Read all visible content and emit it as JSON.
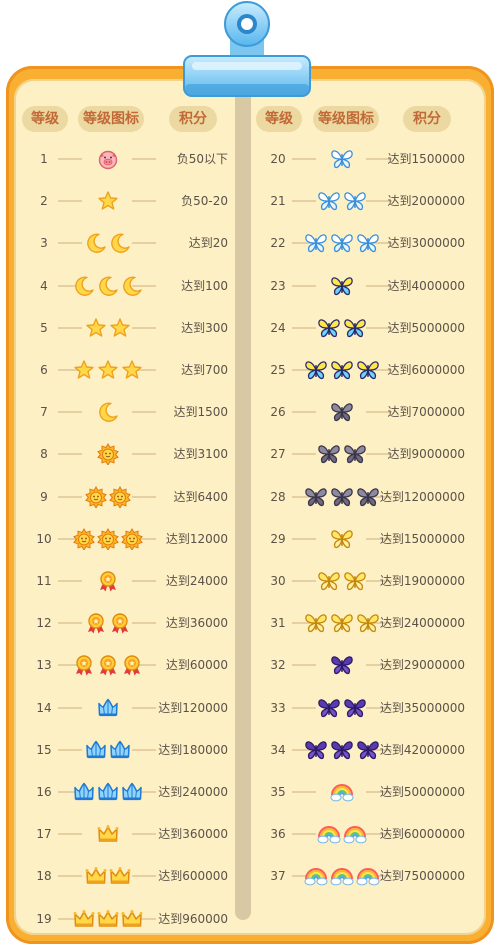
{
  "headers": {
    "level": "等级",
    "icon": "等级图标",
    "points": "积分"
  },
  "colors": {
    "board": "#f9b032",
    "panel": "#fdf0c4",
    "header_bg": "#ecd9a2",
    "header_text": "#c16a38"
  },
  "levels": [
    {
      "level": "1",
      "points": "负50以下",
      "icon": "pig-icon",
      "count": 1
    },
    {
      "level": "2",
      "points": "负50-20",
      "icon": "star-icon",
      "count": 1
    },
    {
      "level": "3",
      "points": "达到20",
      "icon": "moon-icon",
      "count": 2
    },
    {
      "level": "4",
      "points": "达到100",
      "icon": "moon-icon",
      "count": 3
    },
    {
      "level": "5",
      "points": "达到300",
      "icon": "star-icon",
      "count": 2
    },
    {
      "level": "6",
      "points": "达到700",
      "icon": "star-icon",
      "count": 3
    },
    {
      "level": "7",
      "points": "达到1500",
      "icon": "moon-icon",
      "count": 1
    },
    {
      "level": "8",
      "points": "达到3100",
      "icon": "sun-icon",
      "count": 1
    },
    {
      "level": "9",
      "points": "达到6400",
      "icon": "sun-icon",
      "count": 2
    },
    {
      "level": "10",
      "points": "达到12000",
      "icon": "sun-icon",
      "count": 3
    },
    {
      "level": "11",
      "points": "达到24000",
      "icon": "medal-icon",
      "count": 1
    },
    {
      "level": "12",
      "points": "达到36000",
      "icon": "medal-icon",
      "count": 2
    },
    {
      "level": "13",
      "points": "达到60000",
      "icon": "medal-icon",
      "count": 3
    },
    {
      "level": "14",
      "points": "达到120000",
      "icon": "blue-crown-icon",
      "count": 1
    },
    {
      "level": "15",
      "points": "达到180000",
      "icon": "blue-crown-icon",
      "count": 2
    },
    {
      "level": "16",
      "points": "达到240000",
      "icon": "blue-crown-icon",
      "count": 3
    },
    {
      "level": "17",
      "points": "达到360000",
      "icon": "gold-crown-icon",
      "count": 1
    },
    {
      "level": "18",
      "points": "达到600000",
      "icon": "gold-crown-icon",
      "count": 2
    },
    {
      "level": "19",
      "points": "达到960000",
      "icon": "gold-crown-icon",
      "count": 3
    },
    {
      "level": "20",
      "points": "达到1500000",
      "icon": "white-butterfly-icon",
      "count": 1
    },
    {
      "level": "21",
      "points": "达到2000000",
      "icon": "white-butterfly-icon",
      "count": 2
    },
    {
      "level": "22",
      "points": "达到3000000",
      "icon": "white-butterfly-icon",
      "count": 3
    },
    {
      "level": "23",
      "points": "达到4000000",
      "icon": "rainbow-butterfly-icon",
      "count": 1
    },
    {
      "level": "24",
      "points": "达到5000000",
      "icon": "rainbow-butterfly-icon",
      "count": 2
    },
    {
      "level": "25",
      "points": "达到6000000",
      "icon": "rainbow-butterfly-icon",
      "count": 3
    },
    {
      "level": "26",
      "points": "达到7000000",
      "icon": "gray-butterfly-icon",
      "count": 1
    },
    {
      "level": "27",
      "points": "达到9000000",
      "icon": "gray-butterfly-icon",
      "count": 2
    },
    {
      "level": "28",
      "points": "达到12000000",
      "icon": "gray-butterfly-icon",
      "count": 3
    },
    {
      "level": "29",
      "points": "达到15000000",
      "icon": "yellow-butterfly-icon",
      "count": 1
    },
    {
      "level": "30",
      "points": "达到19000000",
      "icon": "yellow-butterfly-icon",
      "count": 2
    },
    {
      "level": "31",
      "points": "达到24000000",
      "icon": "yellow-butterfly-icon",
      "count": 3
    },
    {
      "level": "32",
      "points": "达到29000000",
      "icon": "purple-butterfly-icon",
      "count": 1
    },
    {
      "level": "33",
      "points": "达到35000000",
      "icon": "purple-butterfly-icon",
      "count": 2
    },
    {
      "level": "34",
      "points": "达到42000000",
      "icon": "purple-butterfly-icon",
      "count": 3
    },
    {
      "level": "35",
      "points": "达到50000000",
      "icon": "rainbow-cloud-icon",
      "count": 1
    },
    {
      "level": "36",
      "points": "达到60000000",
      "icon": "rainbow-cloud-icon",
      "count": 2
    },
    {
      "level": "37",
      "points": "达到75000000",
      "icon": "rainbow-cloud-icon",
      "count": 3
    }
  ]
}
